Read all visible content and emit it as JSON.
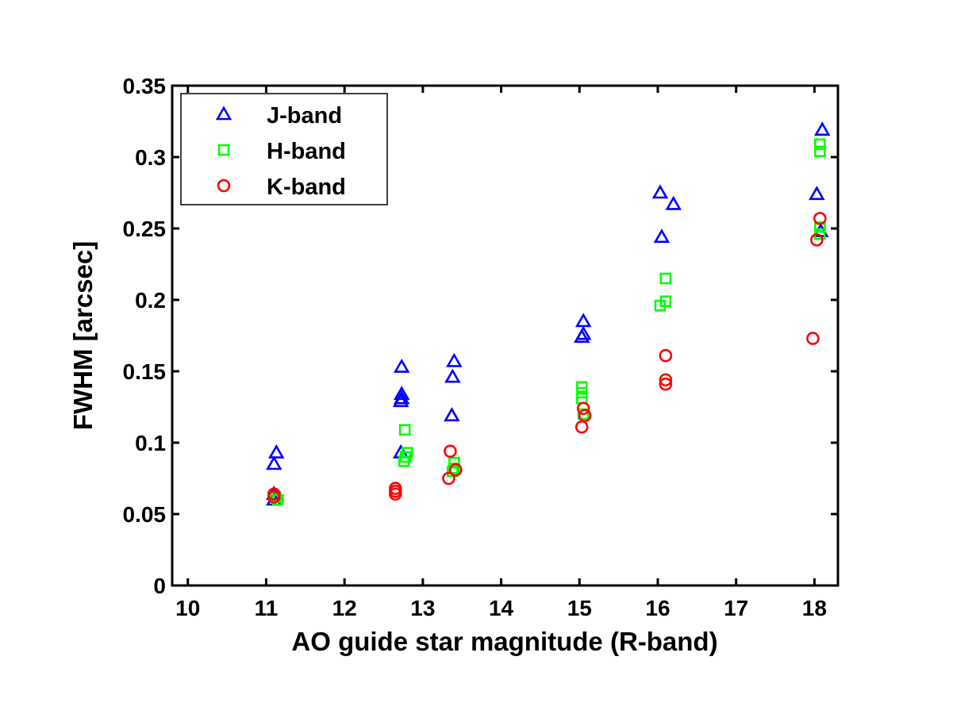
{
  "chart_data": {
    "type": "scatter",
    "title": "",
    "xlabel": "AO guide star magnitude (R-band)",
    "ylabel": "FWHM [arcsec]",
    "xlim": [
      9.8,
      18.3
    ],
    "ylim": [
      0,
      0.35
    ],
    "xticks": [
      10,
      11,
      12,
      13,
      14,
      15,
      16,
      17,
      18
    ],
    "xtick_labels": [
      "10",
      "11",
      "12",
      "13",
      "14",
      "15",
      "16",
      "17",
      "18"
    ],
    "yticks": [
      0,
      0.05,
      0.1,
      0.15,
      0.2,
      0.25,
      0.3,
      0.35
    ],
    "ytick_labels": [
      "0",
      "0.05",
      "0.1",
      "0.15",
      "0.2",
      "0.25",
      "0.3",
      "0.35"
    ],
    "grid": false,
    "legend_position": "top-left",
    "series": [
      {
        "name": "J-band",
        "marker": "triangle",
        "color": "#0000ff",
        "points": [
          [
            11.13,
            0.093
          ],
          [
            11.1,
            0.085
          ],
          [
            11.1,
            0.064
          ],
          [
            11.1,
            0.06
          ],
          [
            12.73,
            0.153
          ],
          [
            12.73,
            0.134
          ],
          [
            12.73,
            0.131
          ],
          [
            12.72,
            0.129
          ],
          [
            12.72,
            0.093
          ],
          [
            13.4,
            0.157
          ],
          [
            13.38,
            0.146
          ],
          [
            13.37,
            0.119
          ],
          [
            15.05,
            0.185
          ],
          [
            15.05,
            0.176
          ],
          [
            15.03,
            0.174
          ],
          [
            16.03,
            0.275
          ],
          [
            16.05,
            0.244
          ],
          [
            16.2,
            0.267
          ],
          [
            18.1,
            0.319
          ],
          [
            18.03,
            0.274
          ],
          [
            18.08,
            0.248
          ]
        ]
      },
      {
        "name": "H-band",
        "marker": "square",
        "color": "#00ff00",
        "points": [
          [
            11.12,
            0.062
          ],
          [
            11.15,
            0.06
          ],
          [
            12.77,
            0.109
          ],
          [
            12.8,
            0.093
          ],
          [
            12.78,
            0.09
          ],
          [
            12.76,
            0.087
          ],
          [
            13.4,
            0.086
          ],
          [
            13.4,
            0.082
          ],
          [
            13.38,
            0.08
          ],
          [
            15.03,
            0.139
          ],
          [
            15.03,
            0.135
          ],
          [
            15.03,
            0.131
          ],
          [
            15.05,
            0.12
          ],
          [
            16.03,
            0.196
          ],
          [
            16.1,
            0.215
          ],
          [
            16.1,
            0.199
          ],
          [
            18.07,
            0.309
          ],
          [
            18.07,
            0.304
          ],
          [
            18.07,
            0.251
          ],
          [
            18.07,
            0.246
          ]
        ]
      },
      {
        "name": "K-band",
        "marker": "circle",
        "color": "#ff0000",
        "points": [
          [
            11.1,
            0.064
          ],
          [
            11.1,
            0.062
          ],
          [
            12.65,
            0.068
          ],
          [
            12.65,
            0.066
          ],
          [
            12.65,
            0.064
          ],
          [
            13.35,
            0.094
          ],
          [
            13.33,
            0.075
          ],
          [
            13.42,
            0.081
          ],
          [
            15.05,
            0.124
          ],
          [
            15.07,
            0.119
          ],
          [
            15.03,
            0.111
          ],
          [
            16.1,
            0.161
          ],
          [
            16.1,
            0.144
          ],
          [
            16.1,
            0.141
          ],
          [
            17.98,
            0.173
          ],
          [
            18.07,
            0.257
          ],
          [
            18.03,
            0.242
          ]
        ]
      }
    ]
  }
}
